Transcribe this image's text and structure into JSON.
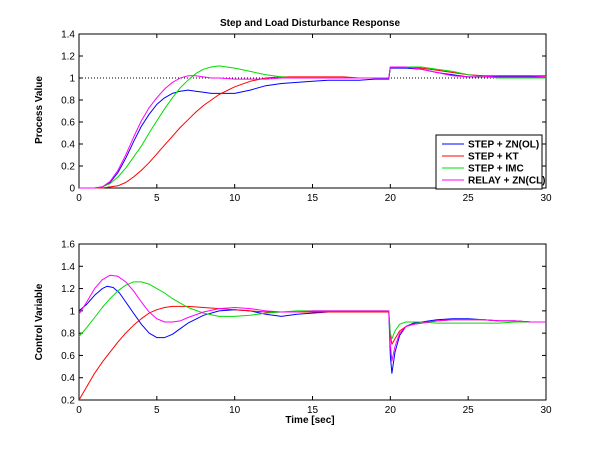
{
  "figure": {
    "background": "#ffffff",
    "charts": [
      {
        "type": "line",
        "title": "Step and Load Disturbance Response",
        "xlabel": "",
        "ylabel": "Process Value",
        "xlim": [
          0,
          30
        ],
        "ylim": [
          0,
          1.4
        ],
        "xticks": [
          0,
          5,
          10,
          15,
          20,
          25,
          30
        ],
        "yticks": [
          0,
          0.2,
          0.4,
          0.6,
          0.8,
          1,
          1.2,
          1.4
        ],
        "grid": false,
        "legend_position": "bottom-right",
        "reference_line": {
          "y": 1,
          "style": "dotted",
          "color": "#000000"
        },
        "series": [
          {
            "name": "STEP + ZN(OL)",
            "color": "#0000ff",
            "x": [
              0,
              1,
              1.5,
              2,
              2.5,
              3,
              3.5,
              4,
              4.5,
              5,
              5.5,
              6,
              6.5,
              7,
              7.5,
              8,
              8.5,
              9,
              10,
              11,
              12,
              13,
              14,
              15,
              16,
              17,
              18,
              19,
              19.9,
              20,
              20.5,
              21,
              22,
              23,
              24,
              25,
              26,
              27,
              28,
              29,
              30
            ],
            "y": [
              0,
              0,
              0.01,
              0.05,
              0.14,
              0.27,
              0.42,
              0.56,
              0.67,
              0.76,
              0.82,
              0.86,
              0.88,
              0.89,
              0.88,
              0.87,
              0.86,
              0.86,
              0.86,
              0.89,
              0.93,
              0.95,
              0.96,
              0.97,
              0.98,
              0.98,
              0.98,
              0.99,
              0.99,
              1.09,
              1.09,
              1.09,
              1.08,
              1.05,
              1.03,
              1.01,
              1.01,
              1.01,
              1.01,
              1.01,
              1.01
            ]
          },
          {
            "name": "STEP + KT",
            "color": "#ff0000",
            "x": [
              0,
              1,
              1.5,
              2,
              2.5,
              3,
              3.5,
              4,
              4.5,
              5,
              5.5,
              6,
              6.5,
              7,
              7.5,
              8,
              8.5,
              9,
              10,
              11,
              12,
              13,
              14,
              15,
              16,
              17,
              18,
              19,
              19.9,
              20,
              20.5,
              21,
              22,
              23,
              24,
              25,
              26,
              27,
              28,
              29,
              30
            ],
            "y": [
              0,
              0,
              0,
              0.01,
              0.02,
              0.05,
              0.1,
              0.16,
              0.23,
              0.31,
              0.39,
              0.47,
              0.55,
              0.62,
              0.69,
              0.75,
              0.8,
              0.85,
              0.92,
              0.97,
              1.0,
              1.01,
              1.01,
              1.01,
              1.01,
              1.01,
              1.0,
              1.0,
              1.0,
              1.1,
              1.1,
              1.1,
              1.09,
              1.07,
              1.05,
              1.03,
              1.02,
              1.02,
              1.02,
              1.02,
              1.02
            ]
          },
          {
            "name": "STEP + IMC",
            "color": "#00dd00",
            "x": [
              0,
              1,
              1.5,
              2,
              2.5,
              3,
              3.5,
              4,
              4.5,
              5,
              5.5,
              6,
              6.5,
              7,
              7.5,
              8,
              8.5,
              9,
              9.5,
              10,
              11,
              12,
              13,
              14,
              15,
              16,
              17,
              18,
              19,
              19.9,
              20,
              20.5,
              21,
              22,
              23,
              24,
              25,
              26,
              27,
              28,
              29,
              30
            ],
            "y": [
              0,
              0,
              0.01,
              0.04,
              0.1,
              0.18,
              0.28,
              0.38,
              0.5,
              0.61,
              0.72,
              0.82,
              0.91,
              0.98,
              1.04,
              1.08,
              1.1,
              1.11,
              1.1,
              1.09,
              1.06,
              1.03,
              1.01,
              1.0,
              1.0,
              1.0,
              1.0,
              1.0,
              1.0,
              1.0,
              1.1,
              1.1,
              1.1,
              1.1,
              1.08,
              1.06,
              1.03,
              1.01,
              1.0,
              1.0,
              1.0,
              1.0
            ]
          },
          {
            "name": "RELAY + ZN(CL)",
            "color": "#ff00ff",
            "x": [
              0,
              1,
              1.5,
              2,
              2.5,
              3,
              3.5,
              4,
              4.5,
              5,
              5.5,
              6,
              6.5,
              7,
              7.5,
              8,
              8.5,
              9,
              10,
              11,
              12,
              13,
              14,
              15,
              16,
              17,
              18,
              19,
              19.9,
              20,
              20.5,
              21,
              22,
              23,
              24,
              25,
              26,
              27,
              28,
              29,
              30
            ],
            "y": [
              0,
              0,
              0.01,
              0.06,
              0.16,
              0.3,
              0.46,
              0.61,
              0.73,
              0.82,
              0.9,
              0.96,
              1.0,
              1.02,
              1.02,
              1.01,
              1.0,
              1.0,
              0.99,
              0.99,
              0.99,
              1.0,
              1.0,
              1.0,
              1.0,
              1.0,
              1.0,
              1.0,
              1.0,
              1.1,
              1.1,
              1.1,
              1.08,
              1.05,
              1.02,
              1.01,
              1.01,
              1.02,
              1.02,
              1.02,
              1.01
            ]
          }
        ]
      },
      {
        "type": "line",
        "title": "",
        "xlabel": "Time [sec]",
        "ylabel": "Control Variable",
        "xlim": [
          0,
          30
        ],
        "ylim": [
          0.2,
          1.6
        ],
        "xticks": [
          0,
          5,
          10,
          15,
          20,
          25,
          30
        ],
        "yticks": [
          0.2,
          0.4,
          0.6,
          0.8,
          1,
          1.2,
          1.4,
          1.6
        ],
        "grid": false,
        "series": [
          {
            "name": "STEP + ZN(OL)",
            "color": "#0000ff",
            "x": [
              0,
              0.5,
              1,
              1.5,
              1.8,
              2.2,
              2.6,
              3,
              3.5,
              4,
              4.5,
              5,
              5.5,
              6,
              6.5,
              7,
              8,
              9,
              10,
              11,
              12,
              13,
              14,
              15,
              16,
              17,
              18,
              19,
              19.9,
              20,
              20.1,
              20.3,
              20.6,
              21,
              21.5,
              22,
              23,
              24,
              25,
              26,
              27,
              28,
              29,
              30
            ],
            "y": [
              1.0,
              1.06,
              1.14,
              1.2,
              1.22,
              1.21,
              1.16,
              1.08,
              0.98,
              0.88,
              0.8,
              0.76,
              0.76,
              0.79,
              0.84,
              0.89,
              0.96,
              1.0,
              1.01,
              1.0,
              0.97,
              0.95,
              0.97,
              0.98,
              0.99,
              0.99,
              0.99,
              0.99,
              0.99,
              0.6,
              0.44,
              0.63,
              0.78,
              0.86,
              0.89,
              0.9,
              0.92,
              0.93,
              0.93,
              0.92,
              0.91,
              0.91,
              0.9,
              0.9
            ]
          },
          {
            "name": "STEP + KT",
            "color": "#ff0000",
            "x": [
              0,
              0.5,
              1,
              1.5,
              2,
              2.5,
              3,
              3.5,
              4,
              4.5,
              5,
              5.5,
              6,
              6.5,
              7,
              8,
              9,
              10,
              11,
              12,
              13,
              14,
              15,
              16,
              17,
              18,
              19,
              19.9,
              20,
              20.1,
              20.3,
              20.6,
              21,
              21.5,
              22,
              23,
              24,
              25,
              26,
              27,
              28,
              29,
              30
            ],
            "y": [
              0.2,
              0.32,
              0.44,
              0.54,
              0.63,
              0.72,
              0.8,
              0.87,
              0.93,
              0.98,
              1.01,
              1.03,
              1.04,
              1.04,
              1.04,
              1.03,
              1.02,
              1.01,
              1.0,
              0.99,
              0.99,
              0.99,
              0.99,
              0.99,
              0.99,
              0.99,
              0.99,
              0.99,
              0.78,
              0.7,
              0.75,
              0.82,
              0.86,
              0.88,
              0.89,
              0.91,
              0.92,
              0.92,
              0.92,
              0.91,
              0.91,
              0.9,
              0.9
            ]
          },
          {
            "name": "STEP + IMC",
            "color": "#00dd00",
            "x": [
              0,
              0.5,
              1,
              1.5,
              2,
              2.5,
              3,
              3.5,
              4,
              4.5,
              5,
              5.5,
              6,
              6.5,
              7,
              8,
              9,
              10,
              11,
              12,
              13,
              14,
              15,
              16,
              17,
              18,
              19,
              19.9,
              20,
              20.1,
              20.3,
              20.6,
              21,
              21.5,
              22,
              23,
              24,
              25,
              26,
              27,
              28,
              29,
              30
            ],
            "y": [
              0.77,
              0.85,
              0.94,
              1.03,
              1.11,
              1.18,
              1.23,
              1.26,
              1.26,
              1.24,
              1.2,
              1.16,
              1.11,
              1.07,
              1.03,
              0.98,
              0.95,
              0.95,
              0.96,
              0.98,
              0.99,
              1.0,
              1.0,
              1.0,
              1.0,
              1.0,
              1.0,
              1.0,
              0.8,
              0.75,
              0.82,
              0.88,
              0.9,
              0.9,
              0.9,
              0.89,
              0.89,
              0.89,
              0.89,
              0.89,
              0.9,
              0.9,
              0.9
            ]
          },
          {
            "name": "RELAY + ZN(CL)",
            "color": "#ff00ff",
            "x": [
              0,
              0.5,
              1,
              1.5,
              2,
              2.5,
              3,
              3.5,
              4,
              4.5,
              5,
              5.5,
              6,
              6.5,
              7,
              8,
              9,
              10,
              11,
              12,
              13,
              14,
              15,
              16,
              17,
              18,
              19,
              19.9,
              20,
              20.1,
              20.3,
              20.6,
              21,
              21.5,
              22,
              23,
              24,
              25,
              26,
              27,
              28,
              29,
              30
            ],
            "y": [
              0.97,
              1.08,
              1.2,
              1.28,
              1.32,
              1.31,
              1.26,
              1.18,
              1.08,
              0.99,
              0.93,
              0.9,
              0.9,
              0.91,
              0.94,
              0.99,
              1.02,
              1.03,
              1.02,
              1.0,
              0.99,
              0.99,
              1.0,
              1.0,
              1.0,
              1.0,
              1.0,
              1.0,
              0.7,
              0.55,
              0.68,
              0.8,
              0.86,
              0.88,
              0.89,
              0.91,
              0.92,
              0.92,
              0.92,
              0.91,
              0.91,
              0.9,
              0.9
            ]
          }
        ]
      }
    ]
  },
  "chart_data": [
    {
      "type": "line",
      "title": "Step and Load Disturbance Response",
      "xlabel": "",
      "ylabel": "Process Value",
      "xlim": [
        0,
        30
      ],
      "ylim": [
        0,
        1.4
      ],
      "legend": [
        "STEP + ZN(OL)",
        "STEP + KT",
        "STEP + IMC",
        "RELAY + ZN(CL)"
      ],
      "series_ref": "figure.charts.0.series"
    },
    {
      "type": "line",
      "title": "",
      "xlabel": "Time [sec]",
      "ylabel": "Control Variable",
      "xlim": [
        0,
        30
      ],
      "ylim": [
        0.2,
        1.6
      ],
      "series_ref": "figure.charts.1.series"
    }
  ]
}
